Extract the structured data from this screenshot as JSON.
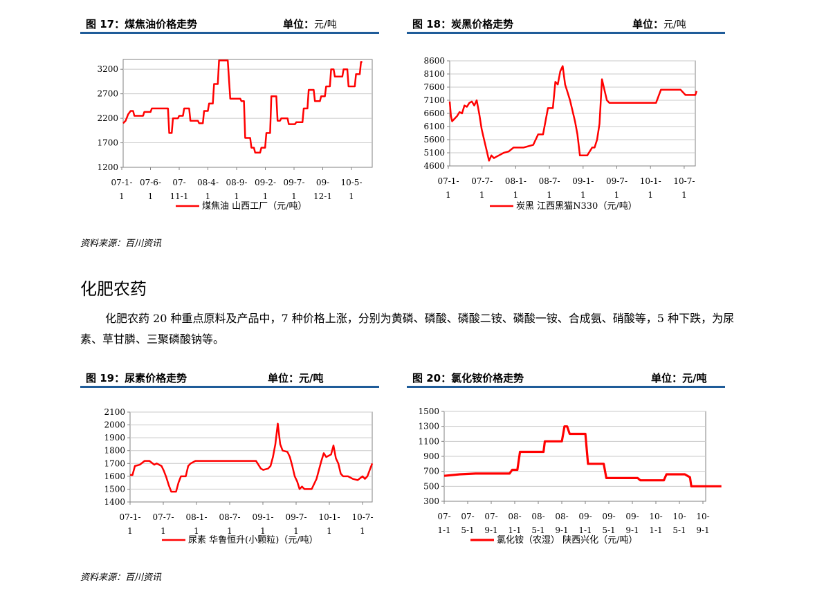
{
  "headers": [
    {
      "title": "图 17：煤焦油价格走势",
      "unit_label": "单位：",
      "unit_value": "元/吨"
    },
    {
      "title": "图 18：炭黑价格走势",
      "unit_label": "单位：",
      "unit_value": "元/吨"
    },
    {
      "title": "图 19：尿素价格走势",
      "unit_label": "单位：",
      "unit_value": "元/吨"
    },
    {
      "title": "图 20：氯化铵价格走势",
      "unit_label": "单位：",
      "unit_value": "元/吨"
    }
  ],
  "sources": [
    "资料来源：百川资讯",
    "资料来源：百川资讯"
  ],
  "section_title": "化肥农药",
  "paragraph": "化肥农药 20 种重点原料及产品中，7 种价格上涨，分别为黄磷、磷酸、磷酸二铵、磷酸一铵、合成氨、硝酸等，5 种下跌，为尿素、草甘膦、三聚磷酸钠等。",
  "line_color": "#ff0000",
  "chart_data": [
    {
      "type": "line",
      "legend": "煤焦油 山西工厂（元/吨）",
      "yticks": [
        1200,
        1700,
        2200,
        2700,
        3200
      ],
      "ylim": [
        1200,
        3400
      ],
      "xlim": [
        0,
        100
      ],
      "xticks": [
        {
          "l1": "07-1-",
          "l2": "1"
        },
        {
          "l1": "07-6-",
          "l2": "1"
        },
        {
          "l1": "07-",
          "l2": "11-1"
        },
        {
          "l1": "08-4-",
          "l2": "1"
        },
        {
          "l1": "08-9-",
          "l2": "1"
        },
        {
          "l1": "09-2-",
          "l2": "1"
        },
        {
          "l1": "09-7-",
          "l2": "1"
        },
        {
          "l1": "09-",
          "l2": "12-1"
        },
        {
          "l1": "10-5-",
          "l2": "1"
        }
      ],
      "points": [
        [
          0,
          2100
        ],
        [
          1,
          2150
        ],
        [
          2,
          2280
        ],
        [
          3,
          2350
        ],
        [
          4,
          2350
        ],
        [
          4.5,
          2250
        ],
        [
          8,
          2250
        ],
        [
          8.5,
          2330
        ],
        [
          11,
          2330
        ],
        [
          11.5,
          2400
        ],
        [
          18,
          2400
        ],
        [
          18.5,
          1900
        ],
        [
          19.5,
          1900
        ],
        [
          20,
          2200
        ],
        [
          22,
          2200
        ],
        [
          22.5,
          2250
        ],
        [
          24,
          2250
        ],
        [
          24.5,
          2400
        ],
        [
          26.5,
          2400
        ],
        [
          27,
          2150
        ],
        [
          30,
          2150
        ],
        [
          30.5,
          2100
        ],
        [
          32,
          2100
        ],
        [
          32.5,
          2350
        ],
        [
          34,
          2350
        ],
        [
          34.5,
          2500
        ],
        [
          36,
          2500
        ],
        [
          36.5,
          2900
        ],
        [
          38,
          2900
        ],
        [
          38.5,
          3380
        ],
        [
          42,
          3380
        ],
        [
          43,
          2600
        ],
        [
          47,
          2600
        ],
        [
          47.5,
          2550
        ],
        [
          48.5,
          2550
        ],
        [
          49,
          1800
        ],
        [
          51,
          1800
        ],
        [
          51.5,
          1600
        ],
        [
          52.5,
          1600
        ],
        [
          53,
          1500
        ],
        [
          55,
          1500
        ],
        [
          55.5,
          1600
        ],
        [
          57,
          1600
        ],
        [
          57.5,
          1900
        ],
        [
          59,
          1900
        ],
        [
          59.5,
          2650
        ],
        [
          61.5,
          2650
        ],
        [
          62,
          2150
        ],
        [
          63,
          2150
        ],
        [
          63.5,
          2200
        ],
        [
          66,
          2200
        ],
        [
          66.5,
          2080
        ],
        [
          69,
          2080
        ],
        [
          69.5,
          2120
        ],
        [
          72,
          2120
        ],
        [
          72.5,
          2400
        ],
        [
          74,
          2400
        ],
        [
          74.5,
          2780
        ],
        [
          76.5,
          2780
        ],
        [
          77,
          2550
        ],
        [
          79,
          2550
        ],
        [
          79.5,
          2650
        ],
        [
          81,
          2650
        ],
        [
          81.5,
          2850
        ],
        [
          83,
          2850
        ],
        [
          83.5,
          3200
        ],
        [
          84.5,
          3200
        ],
        [
          85,
          3050
        ],
        [
          88,
          3050
        ],
        [
          88.5,
          3200
        ],
        [
          90,
          3200
        ],
        [
          90.5,
          2850
        ],
        [
          93,
          2850
        ],
        [
          93.5,
          3100
        ],
        [
          95,
          3100
        ],
        [
          95.5,
          3350
        ],
        [
          96,
          3350
        ]
      ]
    },
    {
      "type": "line",
      "legend": "炭黑 江西黑猫N330（元/吨）",
      "yticks": [
        4600,
        5100,
        5600,
        6100,
        6600,
        7100,
        7600,
        8100,
        8600
      ],
      "ylim": [
        4600,
        8600
      ],
      "xlim": [
        0,
        100
      ],
      "xticks": [
        {
          "l1": "07-1-",
          "l2": "1"
        },
        {
          "l1": "07-7-",
          "l2": "1"
        },
        {
          "l1": "08-1-",
          "l2": "1"
        },
        {
          "l1": "08-7-",
          "l2": "1"
        },
        {
          "l1": "09-1-",
          "l2": "1"
        },
        {
          "l1": "09-7-",
          "l2": "1"
        },
        {
          "l1": "10-1-",
          "l2": "1"
        },
        {
          "l1": "10-7-",
          "l2": "1"
        }
      ],
      "points": [
        [
          0,
          7050
        ],
        [
          0.5,
          6500
        ],
        [
          1,
          6300
        ],
        [
          2,
          6400
        ],
        [
          3,
          6500
        ],
        [
          4,
          6650
        ],
        [
          5,
          6600
        ],
        [
          6,
          6900
        ],
        [
          7,
          6850
        ],
        [
          8,
          7000
        ],
        [
          9,
          7050
        ],
        [
          10,
          6900
        ],
        [
          11,
          7100
        ],
        [
          12,
          6600
        ],
        [
          13,
          6000
        ],
        [
          14,
          5600
        ],
        [
          15,
          5200
        ],
        [
          16,
          4800
        ],
        [
          17,
          5000
        ],
        [
          18,
          4900
        ],
        [
          19,
          4950
        ],
        [
          20,
          5000
        ],
        [
          22,
          5100
        ],
        [
          24,
          5150
        ],
        [
          26,
          5300
        ],
        [
          30,
          5300
        ],
        [
          34,
          5400
        ],
        [
          36,
          5800
        ],
        [
          38,
          5800
        ],
        [
          40,
          6800
        ],
        [
          42,
          6800
        ],
        [
          43,
          7800
        ],
        [
          44,
          7700
        ],
        [
          45,
          8200
        ],
        [
          46,
          8400
        ],
        [
          47,
          7700
        ],
        [
          48,
          7400
        ],
        [
          49,
          7100
        ],
        [
          50,
          6700
        ],
        [
          51,
          6300
        ],
        [
          52,
          5800
        ],
        [
          53,
          5000
        ],
        [
          56,
          5000
        ],
        [
          58,
          5300
        ],
        [
          59,
          5300
        ],
        [
          60,
          5600
        ],
        [
          61,
          6200
        ],
        [
          62,
          7900
        ],
        [
          63,
          7500
        ],
        [
          64,
          7100
        ],
        [
          65,
          7000
        ],
        [
          72,
          7000
        ],
        [
          80,
          7000
        ],
        [
          84,
          7000
        ],
        [
          86,
          7500
        ],
        [
          94,
          7500
        ],
        [
          96,
          7300
        ],
        [
          100,
          7300
        ],
        [
          100.5,
          7450
        ]
      ]
    },
    {
      "type": "line",
      "legend": "尿素 华鲁恒升(小颗粒)（元/吨）",
      "yticks": [
        1400,
        1500,
        1600,
        1700,
        1800,
        1900,
        2000,
        2100
      ],
      "ylim": [
        1400,
        2100
      ],
      "xlim": [
        0,
        100
      ],
      "xticks": [
        {
          "l1": "07-1-",
          "l2": "1"
        },
        {
          "l1": "07-7-",
          "l2": "1"
        },
        {
          "l1": "08-1-",
          "l2": "1"
        },
        {
          "l1": "08-7-",
          "l2": "1"
        },
        {
          "l1": "09-1-",
          "l2": "1"
        },
        {
          "l1": "09-7-",
          "l2": "1"
        },
        {
          "l1": "10-1-",
          "l2": "1"
        },
        {
          "l1": "10-7-",
          "l2": "1"
        }
      ],
      "points": [
        [
          0,
          1610
        ],
        [
          1,
          1610
        ],
        [
          2,
          1680
        ],
        [
          4,
          1690
        ],
        [
          6,
          1720
        ],
        [
          8,
          1720
        ],
        [
          10,
          1690
        ],
        [
          11,
          1700
        ],
        [
          13,
          1680
        ],
        [
          14,
          1640
        ],
        [
          15,
          1590
        ],
        [
          16,
          1530
        ],
        [
          17,
          1480
        ],
        [
          19,
          1480
        ],
        [
          20,
          1550
        ],
        [
          21,
          1600
        ],
        [
          23,
          1600
        ],
        [
          24,
          1680
        ],
        [
          25,
          1700
        ],
        [
          27,
          1720
        ],
        [
          34,
          1720
        ],
        [
          40,
          1720
        ],
        [
          46,
          1720
        ],
        [
          52,
          1720
        ],
        [
          54,
          1660
        ],
        [
          55,
          1650
        ],
        [
          57,
          1660
        ],
        [
          58,
          1680
        ],
        [
          59,
          1750
        ],
        [
          60,
          1850
        ],
        [
          61,
          2010
        ],
        [
          62,
          1850
        ],
        [
          63,
          1800
        ],
        [
          65,
          1790
        ],
        [
          66,
          1750
        ],
        [
          67,
          1680
        ],
        [
          68,
          1600
        ],
        [
          69,
          1560
        ],
        [
          70,
          1500
        ],
        [
          71,
          1520
        ],
        [
          72,
          1500
        ],
        [
          75,
          1500
        ],
        [
          77,
          1580
        ],
        [
          78,
          1650
        ],
        [
          79,
          1720
        ],
        [
          80,
          1780
        ],
        [
          81,
          1750
        ],
        [
          83,
          1770
        ],
        [
          84,
          1840
        ],
        [
          85,
          1740
        ],
        [
          86,
          1700
        ],
        [
          87,
          1620
        ],
        [
          88,
          1600
        ],
        [
          90,
          1600
        ],
        [
          92,
          1580
        ],
        [
          94,
          1570
        ],
        [
          96,
          1600
        ],
        [
          97,
          1580
        ],
        [
          98,
          1600
        ],
        [
          99,
          1650
        ],
        [
          100,
          1700
        ]
      ]
    },
    {
      "type": "line",
      "legend": "氯化铵（农湿） 陕西兴化（元/吨）",
      "yticks": [
        300,
        500,
        700,
        900,
        1100,
        1300,
        1500
      ],
      "ylim": [
        300,
        1500
      ],
      "xlim": [
        0,
        100
      ],
      "xticks": [
        {
          "l1": "07-",
          "l2": "1-1"
        },
        {
          "l1": "07-",
          "l2": "5-1"
        },
        {
          "l1": "07-",
          "l2": "9-1"
        },
        {
          "l1": "08-",
          "l2": "1-1"
        },
        {
          "l1": "08-",
          "l2": "5-1"
        },
        {
          "l1": "08-",
          "l2": "9-1"
        },
        {
          "l1": "09-",
          "l2": "1-1"
        },
        {
          "l1": "09-",
          "l2": "5-1"
        },
        {
          "l1": "09-",
          "l2": "9-1"
        },
        {
          "l1": "10-",
          "l2": "1-1"
        },
        {
          "l1": "10-",
          "l2": "5-1"
        },
        {
          "l1": "10-",
          "l2": "9-1"
        }
      ],
      "points": [
        [
          0,
          640
        ],
        [
          3,
          650
        ],
        [
          6,
          660
        ],
        [
          12,
          670
        ],
        [
          20,
          670
        ],
        [
          25,
          670
        ],
        [
          26,
          720
        ],
        [
          28,
          720
        ],
        [
          29,
          960
        ],
        [
          38,
          960
        ],
        [
          38.5,
          1100
        ],
        [
          45,
          1100
        ],
        [
          46,
          1300
        ],
        [
          47,
          1300
        ],
        [
          48,
          1200
        ],
        [
          54,
          1200
        ],
        [
          55,
          800
        ],
        [
          61,
          800
        ],
        [
          62,
          610
        ],
        [
          74,
          610
        ],
        [
          75,
          580
        ],
        [
          84,
          580
        ],
        [
          85,
          660
        ],
        [
          92,
          660
        ],
        [
          94,
          620
        ],
        [
          94.5,
          500
        ],
        [
          106,
          500
        ]
      ]
    }
  ]
}
